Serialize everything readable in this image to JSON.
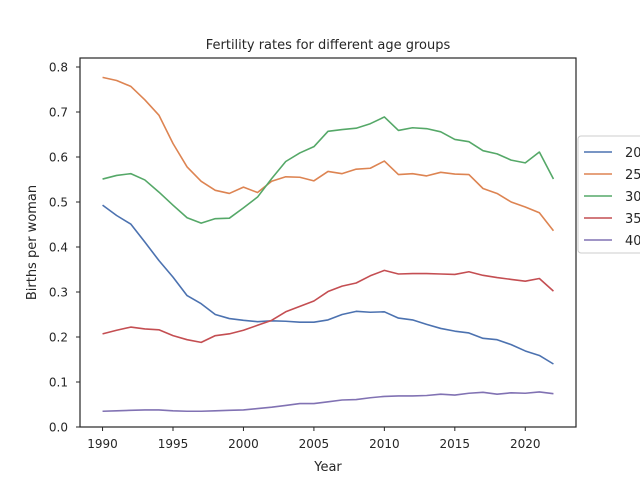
{
  "chart_data": {
    "type": "line",
    "title": "Fertility rates for different age groups",
    "xlabel": "Year",
    "ylabel": "Births per woman",
    "xlim": [
      1988.4,
      2023.6
    ],
    "ylim": [
      0.0,
      0.82
    ],
    "xticks": [
      1990,
      1995,
      2000,
      2005,
      2010,
      2015,
      2020
    ],
    "yticks": [
      "0.0",
      "0.1",
      "0.2",
      "0.3",
      "0.4",
      "0.5",
      "0.6",
      "0.7",
      "0.8"
    ],
    "grid": false,
    "legend_position": "center-right (outside, clipped)",
    "x": [
      1990,
      1991,
      1992,
      1993,
      1994,
      1995,
      1996,
      1997,
      1998,
      1999,
      2000,
      2001,
      2002,
      2003,
      2004,
      2005,
      2006,
      2007,
      2008,
      2009,
      2010,
      2011,
      2012,
      2013,
      2014,
      2015,
      2016,
      2017,
      2018,
      2019,
      2020,
      2021,
      2022
    ],
    "series": [
      {
        "name": "20",
        "color": "#4C72B0",
        "values": [
          0.493,
          0.47,
          0.451,
          0.411,
          0.37,
          0.333,
          0.292,
          0.274,
          0.25,
          0.241,
          0.237,
          0.234,
          0.236,
          0.235,
          0.233,
          0.233,
          0.238,
          0.25,
          0.257,
          0.255,
          0.256,
          0.242,
          0.238,
          0.228,
          0.219,
          0.213,
          0.209,
          0.197,
          0.194,
          0.183,
          0.169,
          0.159,
          0.14
        ]
      },
      {
        "name": "25",
        "color": "#DD8452",
        "values": [
          0.777,
          0.77,
          0.757,
          0.727,
          0.693,
          0.63,
          0.578,
          0.546,
          0.526,
          0.519,
          0.533,
          0.521,
          0.546,
          0.556,
          0.555,
          0.547,
          0.568,
          0.563,
          0.573,
          0.575,
          0.591,
          0.561,
          0.563,
          0.558,
          0.566,
          0.562,
          0.561,
          0.53,
          0.519,
          0.5,
          0.489,
          0.476,
          0.436
        ]
      },
      {
        "name": "30",
        "color": "#55A868",
        "values": [
          0.551,
          0.559,
          0.563,
          0.549,
          0.522,
          0.493,
          0.465,
          0.453,
          0.463,
          0.464,
          0.487,
          0.511,
          0.552,
          0.59,
          0.609,
          0.623,
          0.657,
          0.661,
          0.664,
          0.674,
          0.689,
          0.659,
          0.665,
          0.663,
          0.656,
          0.639,
          0.634,
          0.614,
          0.607,
          0.593,
          0.587,
          0.611,
          0.551
        ]
      },
      {
        "name": "35",
        "color": "#C44E52",
        "values": [
          0.207,
          0.215,
          0.222,
          0.218,
          0.216,
          0.203,
          0.194,
          0.188,
          0.203,
          0.207,
          0.215,
          0.226,
          0.237,
          0.256,
          0.268,
          0.28,
          0.301,
          0.313,
          0.32,
          0.336,
          0.348,
          0.34,
          0.341,
          0.341,
          0.34,
          0.339,
          0.345,
          0.337,
          0.332,
          0.328,
          0.324,
          0.33,
          0.302
        ]
      },
      {
        "name": "40",
        "color": "#8172B3",
        "values": [
          0.035,
          0.036,
          0.037,
          0.038,
          0.038,
          0.036,
          0.035,
          0.035,
          0.036,
          0.037,
          0.038,
          0.041,
          0.044,
          0.048,
          0.052,
          0.052,
          0.056,
          0.06,
          0.061,
          0.065,
          0.068,
          0.069,
          0.069,
          0.07,
          0.073,
          0.071,
          0.075,
          0.077,
          0.073,
          0.076,
          0.075,
          0.078,
          0.074
        ]
      }
    ]
  }
}
